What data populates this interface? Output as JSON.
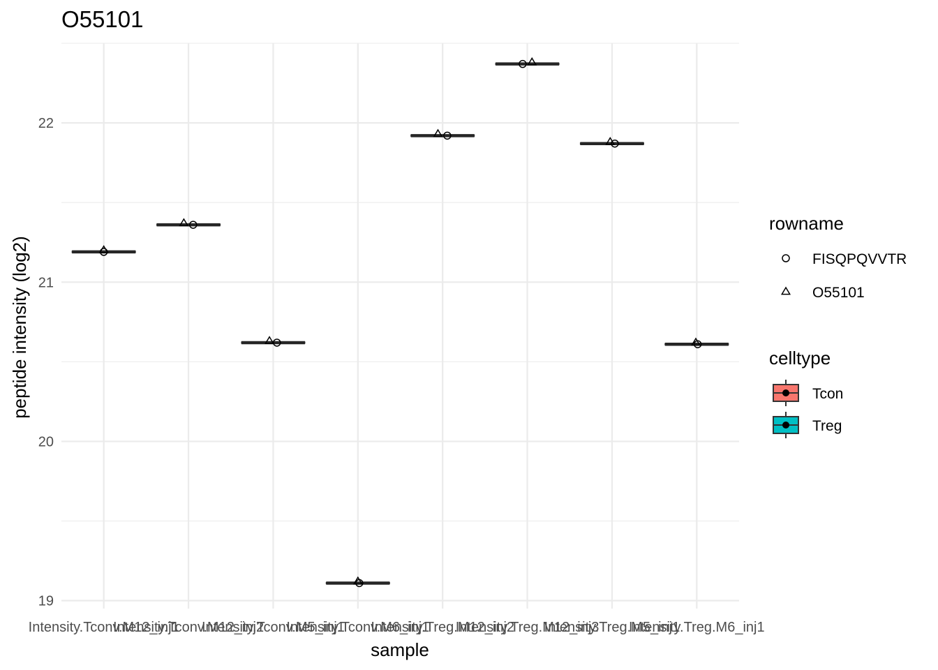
{
  "chart_data": {
    "type": "box",
    "title": "O55101",
    "xlabel": "sample",
    "ylabel": "peptide intensity (log2)",
    "ylim": [
      18.95,
      22.5
    ],
    "y_ticks": [
      19,
      20,
      21,
      22
    ],
    "categories": [
      "Intensity.Tconv.M12_inj1",
      "Intensity.Tconv.M12_inj2",
      "Intensity.Tconv.M5_inj1",
      "Intensity.Tconv.M6_inj1",
      "Intensity.Treg.M12_inj2",
      "Intensity.Treg.M12_inj3",
      "Intensity.Treg.M5_inj1",
      "Intensity.Treg.M6_inj1"
    ],
    "celltype": [
      "Tcon",
      "Tcon",
      "Tcon",
      "Tcon",
      "Treg",
      "Treg",
      "Treg",
      "Treg"
    ],
    "medians": [
      21.19,
      21.36,
      20.62,
      19.11,
      21.92,
      22.37,
      21.87,
      20.61
    ],
    "series": [
      {
        "name": "FISQPQVVTR",
        "shape": "circle",
        "values": [
          21.19,
          21.36,
          20.62,
          19.11,
          21.92,
          22.37,
          21.87,
          20.61
        ]
      },
      {
        "name": "O55101",
        "shape": "triangle",
        "values": [
          21.2,
          21.37,
          20.63,
          19.12,
          21.93,
          22.38,
          21.88,
          20.62
        ]
      }
    ],
    "series_offsets": [
      [
        0,
        0
      ],
      [
        0.1,
        -0.1
      ],
      [
        0.08,
        -0.08
      ],
      [
        0.03,
        0
      ],
      [
        0.1,
        -0.1
      ],
      [
        -0.1,
        0.1
      ],
      [
        0.06,
        -0.04
      ],
      [
        0.02,
        -0.02
      ]
    ],
    "legend": {
      "placement": "right",
      "shape_title": "rowname",
      "fill_title": "celltype",
      "fill_items": [
        {
          "name": "Tcon",
          "color": "#F8766D"
        },
        {
          "name": "Treg",
          "color": "#00BFC4"
        }
      ]
    },
    "grid": true
  }
}
